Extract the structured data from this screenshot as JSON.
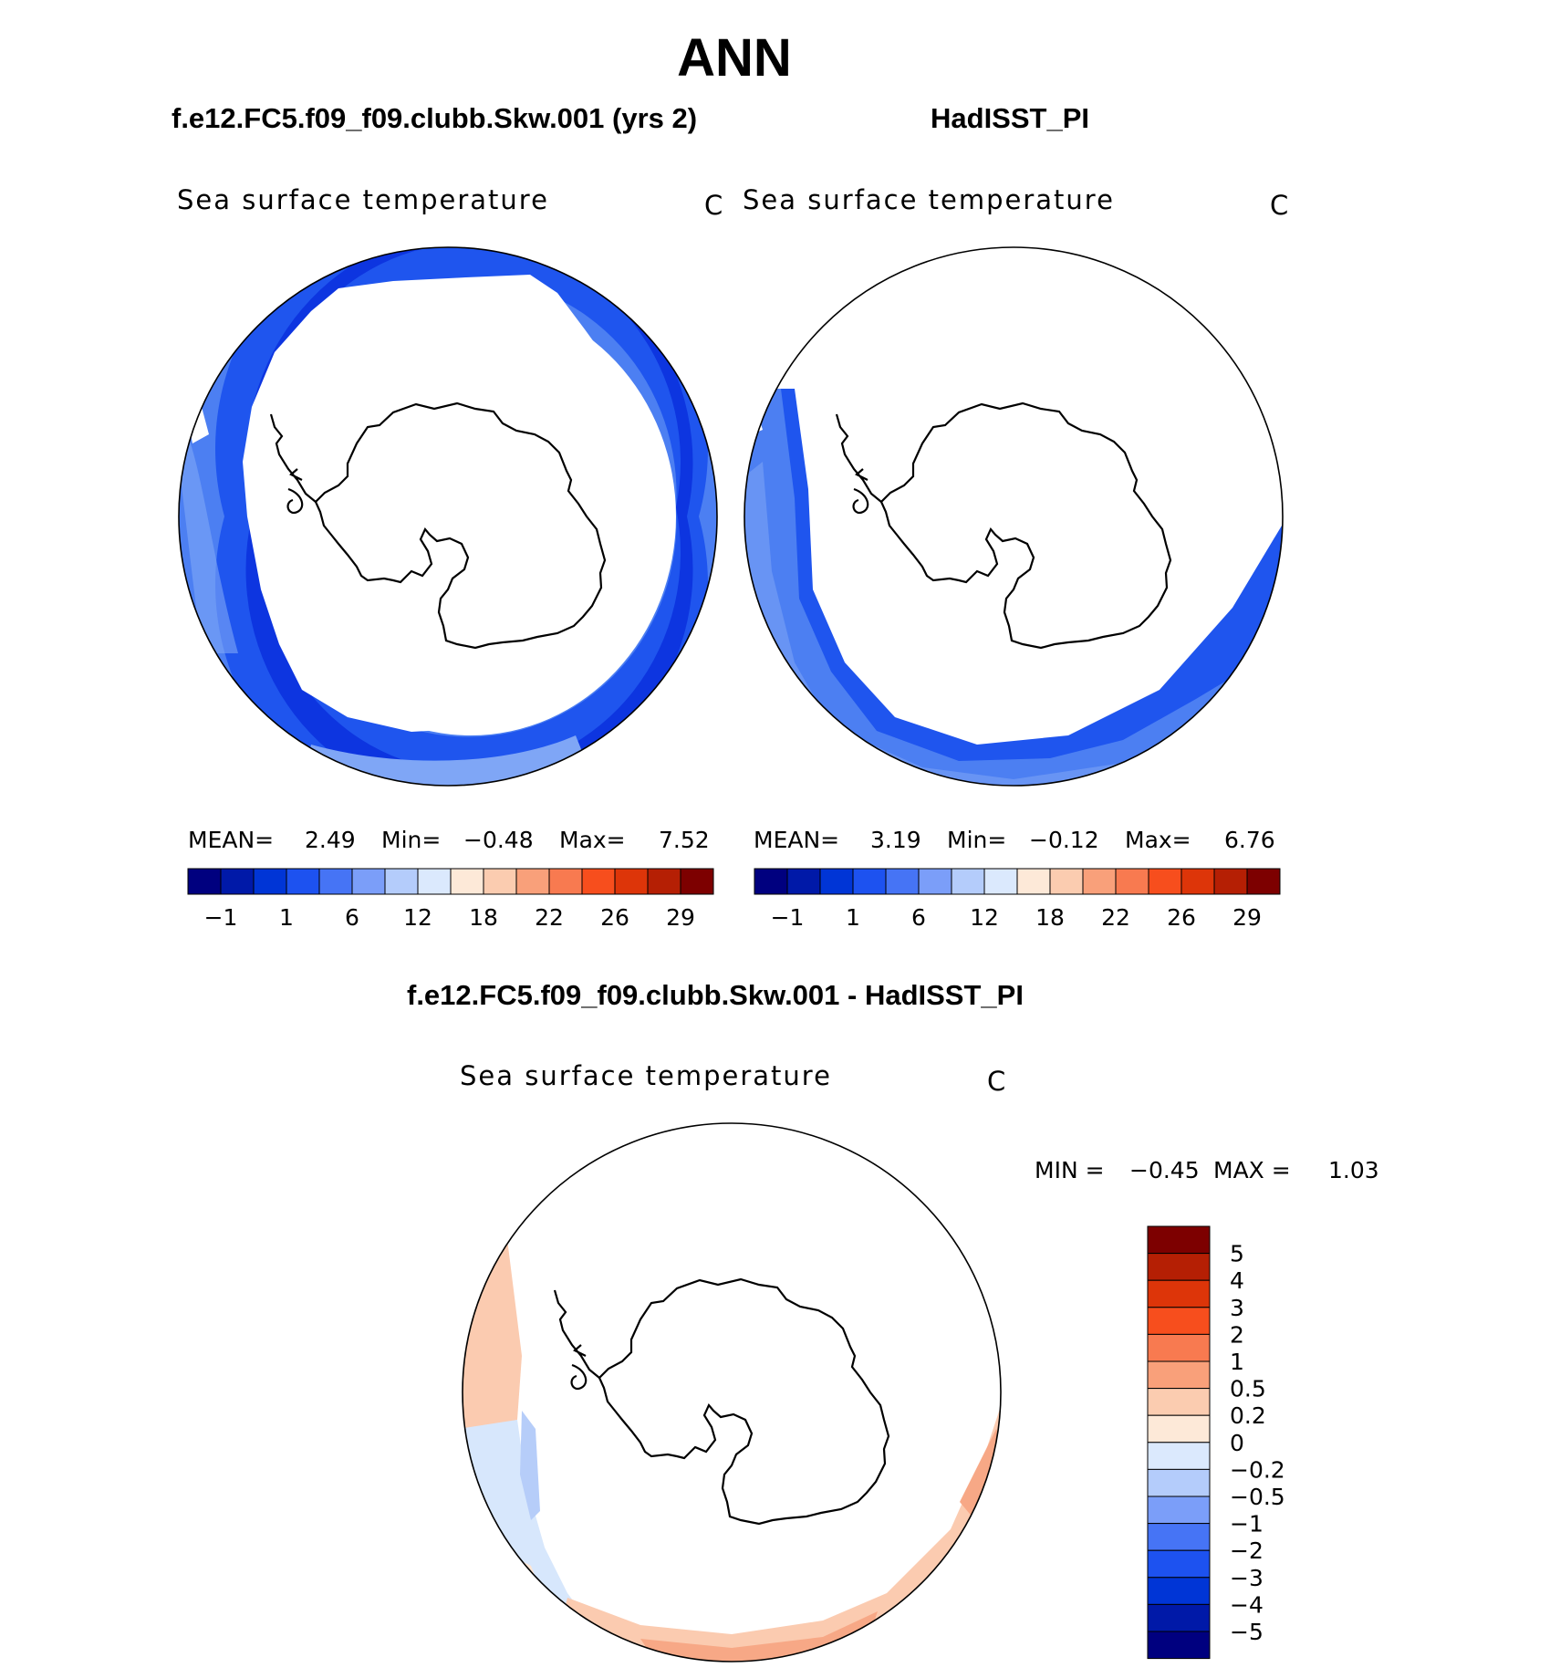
{
  "figure": {
    "title": "ANN",
    "left_panel_header": "f.e12.FC5.f09_f09.clubb.Skw.001 (yrs 2)",
    "right_panel_header": "HadISST_PI",
    "diff_panel_header": "f.e12.FC5.f09_f09.clubb.Skw.001 - HadISST_PI"
  },
  "panels": {
    "model": {
      "variable": "Sea surface temperature",
      "unit": "C",
      "mean_label": "MEAN=",
      "mean_value": "2.49",
      "min_label": "Min=",
      "min_value": "−0.48",
      "max_label": "Max=",
      "max_value": "7.52"
    },
    "obs": {
      "variable": "Sea surface temperature",
      "unit": "C",
      "mean_label": "MEAN=",
      "mean_value": "3.19",
      "min_label": "Min=",
      "min_value": "−0.12",
      "max_label": "Max=",
      "max_value": "6.76"
    },
    "diff": {
      "variable": "Sea surface temperature",
      "unit": "C",
      "min_label": "MIN =",
      "min_value": "−0.45",
      "max_label": "MAX =",
      "max_value": "1.03"
    }
  },
  "colorbar_horizontal": {
    "colors": [
      "#00007f",
      "#0019a8",
      "#0035d6",
      "#1d52f0",
      "#4674f5",
      "#7b9ef9",
      "#b4ccfb",
      "#dbe9fd",
      "#fde9d8",
      "#fbccb0",
      "#f9a07a",
      "#f87a50",
      "#f74e1d",
      "#dd3509",
      "#b51f04",
      "#7d0000"
    ],
    "tick_labels": [
      "−1",
      "1",
      "6",
      "12",
      "18",
      "22",
      "26",
      "29"
    ]
  },
  "colorbar_vertical": {
    "colors_top_to_bottom": [
      "#7d0000",
      "#b51f04",
      "#dd3509",
      "#f74e1d",
      "#f87a50",
      "#f9a07a",
      "#fbccb0",
      "#fde9d8",
      "#dbe9fd",
      "#b4ccfb",
      "#7b9ef9",
      "#4674f5",
      "#1d52f0",
      "#0035d6",
      "#0019a8",
      "#00007f"
    ],
    "tick_labels": [
      "5",
      "4",
      "3",
      "2",
      "1",
      "0.5",
      "0.2",
      "0",
      "−0.2",
      "−0.5",
      "−1",
      "−2",
      "−3",
      "−4",
      "−5"
    ]
  },
  "map_colors": {
    "cold_dark": "#0d35e0",
    "cold_mid": "#1f55ee",
    "cool": "#4c7ff2",
    "cool_light": "#7fa6f6",
    "ice_edge": "#dbe9fd",
    "diff_pos_light": "#fde5d3",
    "diff_pos_mid": "#fbcbb0",
    "diff_pos_strong": "#f7a886",
    "diff_neg_light": "#d7e7fc",
    "diff_neg_mid": "#b6cdf9"
  }
}
